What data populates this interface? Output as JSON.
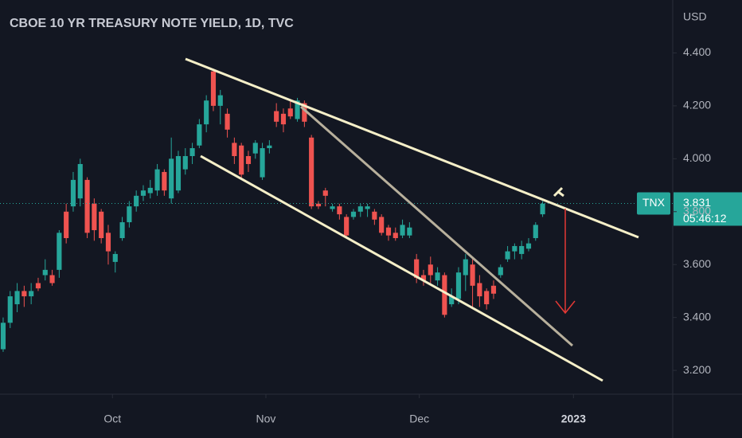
{
  "chart_data": {
    "type": "candlestick",
    "title": "CBOE 10 YR TREASURY NOTE YIELD, 1D, TVC",
    "y_axis_label": "USD",
    "up_color": "#26a69a",
    "down_color": "#ef5350",
    "open": [
      3.28,
      3.38,
      3.45,
      3.5,
      3.48,
      3.53,
      3.56,
      3.56,
      3.58,
      3.8,
      3.82,
      3.85,
      3.92,
      3.83,
      3.8,
      3.72,
      3.61,
      3.7,
      3.76,
      3.82,
      3.86,
      3.87,
      3.88,
      3.95,
      3.85,
      3.88,
      3.96,
      4.01,
      4.05,
      4.13,
      4.33,
      4.2,
      4.17,
      4.06,
      4.05,
      4.01,
      4.02,
      3.93,
      4.04,
      4.18,
      4.17,
      4.19,
      4.15,
      4.21,
      4.08,
      3.83,
      3.88,
      3.81,
      3.82,
      3.78,
      3.78,
      3.8,
      3.81,
      3.8,
      3.78,
      3.74,
      3.72,
      3.71,
      3.71,
      3.62,
      3.56,
      3.6,
      3.54,
      3.56,
      3.45,
      3.47,
      3.56,
      3.6,
      3.53,
      3.5,
      3.52,
      3.56,
      3.62,
      3.65,
      3.64,
      3.66,
      3.7,
      3.79
    ],
    "high": [
      3.4,
      3.5,
      3.53,
      3.52,
      3.53,
      3.55,
      3.62,
      3.58,
      3.73,
      3.83,
      3.95,
      4.0,
      3.93,
      3.85,
      3.81,
      3.75,
      3.65,
      3.78,
      3.84,
      3.88,
      3.9,
      3.92,
      3.98,
      3.96,
      4.08,
      4.03,
      4.04,
      4.06,
      4.15,
      4.24,
      4.34,
      4.26,
      4.19,
      4.08,
      4.06,
      4.03,
      4.07,
      4.06,
      4.07,
      4.21,
      4.19,
      4.22,
      4.23,
      4.22,
      4.09,
      3.84,
      3.89,
      3.83,
      3.83,
      3.79,
      3.81,
      3.83,
      3.83,
      3.81,
      3.79,
      3.75,
      3.74,
      3.77,
      3.76,
      3.64,
      3.58,
      3.63,
      3.59,
      3.57,
      3.51,
      3.59,
      3.64,
      3.62,
      3.56,
      3.51,
      3.54,
      3.6,
      3.67,
      3.68,
      3.69,
      3.7,
      3.76,
      3.84
    ],
    "low": [
      3.27,
      3.36,
      3.42,
      3.44,
      3.45,
      3.5,
      3.54,
      3.52,
      3.55,
      3.68,
      3.8,
      3.82,
      3.7,
      3.69,
      3.68,
      3.6,
      3.57,
      3.69,
      3.74,
      3.8,
      3.84,
      3.85,
      3.86,
      3.86,
      3.83,
      3.87,
      3.94,
      3.98,
      4.04,
      4.1,
      4.18,
      4.13,
      4.08,
      3.98,
      3.92,
      3.95,
      4.0,
      3.92,
      4.02,
      4.12,
      4.1,
      4.15,
      4.14,
      4.12,
      3.81,
      3.81,
      3.82,
      3.8,
      3.77,
      3.7,
      3.77,
      3.78,
      3.78,
      3.75,
      3.71,
      3.69,
      3.69,
      3.7,
      3.7,
      3.53,
      3.52,
      3.53,
      3.52,
      3.4,
      3.44,
      3.45,
      3.5,
      3.44,
      3.44,
      3.43,
      3.47,
      3.55,
      3.61,
      3.62,
      3.62,
      3.65,
      3.69,
      3.78
    ],
    "close": [
      3.38,
      3.48,
      3.5,
      3.48,
      3.5,
      3.51,
      3.58,
      3.53,
      3.72,
      3.7,
      3.92,
      3.98,
      3.72,
      3.73,
      3.7,
      3.65,
      3.64,
      3.76,
      3.82,
      3.86,
      3.88,
      3.89,
      3.96,
      3.88,
      4.0,
      4.01,
      4.01,
      4.04,
      4.13,
      4.22,
      4.2,
      4.24,
      4.11,
      4.01,
      3.94,
      3.98,
      4.06,
      4.04,
      4.05,
      4.14,
      4.13,
      4.16,
      4.22,
      4.14,
      3.82,
      3.82,
      3.86,
      3.82,
      3.79,
      3.71,
      3.8,
      3.82,
      3.82,
      3.77,
      3.72,
      3.71,
      3.7,
      3.75,
      3.74,
      3.55,
      3.54,
      3.56,
      3.57,
      3.41,
      3.48,
      3.57,
      3.62,
      3.52,
      3.48,
      3.45,
      3.49,
      3.59,
      3.65,
      3.67,
      3.67,
      3.68,
      3.75,
      3.83
    ],
    "xlim": [
      -0.45,
      95.57
    ],
    "xticks": [
      {
        "value": 15.6,
        "label": "Oct"
      },
      {
        "value": 37.5,
        "label": "Nov"
      },
      {
        "value": 59.4,
        "label": "Dec"
      },
      {
        "value": 81.4,
        "label": "2023"
      }
    ],
    "ylim": [
      3.11,
      4.6
    ],
    "yticks": [
      {
        "value": 4.4,
        "label": "4.400"
      },
      {
        "value": 4.2,
        "label": "4.200"
      },
      {
        "value": 4.0,
        "label": "4.000"
      },
      {
        "value": 3.8,
        "label": "3.800"
      },
      {
        "value": 3.6,
        "label": "3.600"
      },
      {
        "value": 3.4,
        "label": "3.400"
      },
      {
        "value": 3.2,
        "label": "3.200"
      }
    ],
    "current_price": {
      "symbol": "TNX",
      "value": 3.831,
      "countdown": "05:46:12"
    }
  }
}
